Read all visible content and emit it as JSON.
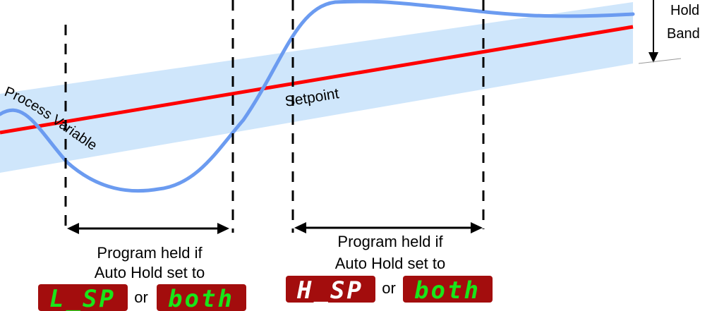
{
  "hold_band_label": [
    "Hold",
    "Band"
  ],
  "process_variable_label": "Process Variable",
  "setpoint_label": "Setpoint",
  "left_region": {
    "caption": [
      "Program held if",
      "Auto Hold set to"
    ],
    "display_1": "L_SP",
    "connector": "or",
    "display_2": "both"
  },
  "right_region": {
    "caption": [
      "Program held if",
      "Auto Hold set to"
    ],
    "display_1": "H_SP",
    "connector": "or",
    "display_2": "both"
  },
  "colors": {
    "band": "#cfe6fb",
    "setpoint": "#ff0000",
    "process_variable": "#6b9bf0",
    "lcd_background": "#a30d0d",
    "lcd_digits": "#19e619"
  }
}
